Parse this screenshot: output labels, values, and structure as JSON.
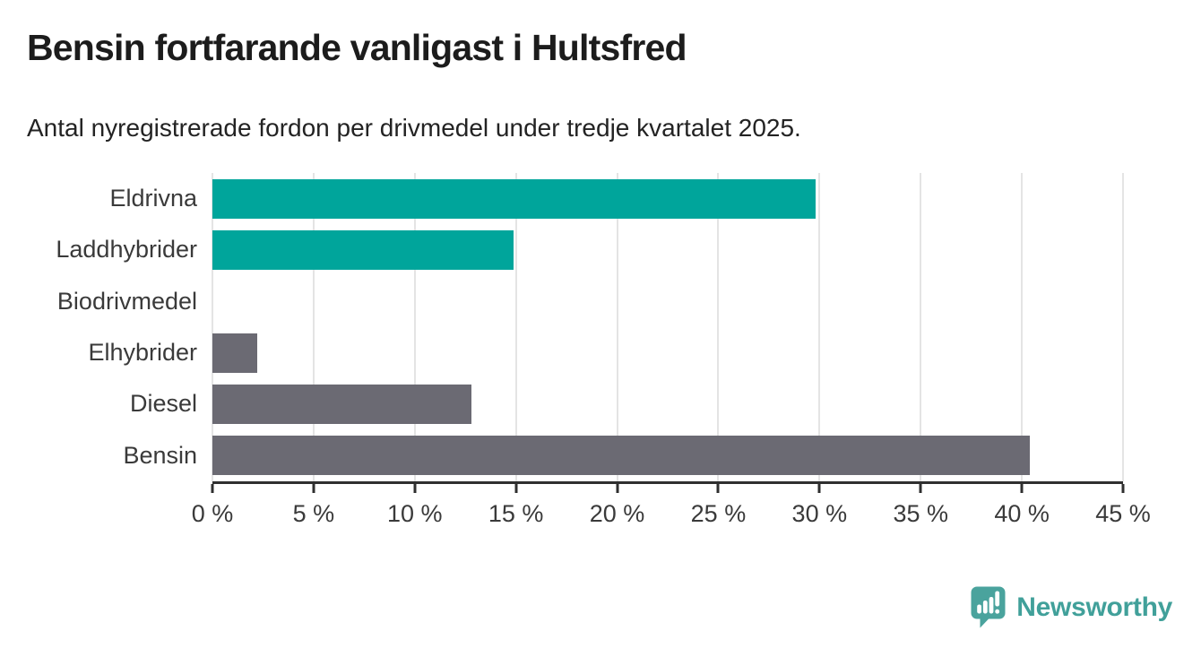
{
  "header": {
    "title": "Bensin fortfarande vanligast i Hultsfred",
    "subtitle": "Antal nyregistrerade fordon per drivmedel under tredje kvartalet 2025."
  },
  "chart_data": {
    "type": "bar",
    "orientation": "horizontal",
    "title": "Bensin fortfarande vanligast i Hultsfred",
    "subtitle": "Antal nyregistrerade fordon per drivmedel under tredje kvartalet 2025.",
    "categories": [
      "Eldrivna",
      "Laddhybrider",
      "Biodrivmedel",
      "Elhybrider",
      "Diesel",
      "Bensin"
    ],
    "values": [
      29.8,
      14.9,
      0,
      2.2,
      12.8,
      40.4
    ],
    "unit": "%",
    "bar_colors": [
      "#00a59b",
      "#00a59b",
      "#6b6a73",
      "#6b6a73",
      "#6b6a73",
      "#6b6a73"
    ],
    "xlim": [
      0,
      45
    ],
    "x_tick_values": [
      0,
      5,
      10,
      15,
      20,
      25,
      30,
      35,
      40,
      45
    ],
    "x_tick_labels": [
      "0 %",
      "5 %",
      "10 %",
      "15 %",
      "20 %",
      "25 %",
      "30 %",
      "35 %",
      "40 %",
      "45 %"
    ],
    "grid": "vertical-gridlines-at-ticks",
    "legend": "none",
    "xlabel": "",
    "ylabel": ""
  },
  "colors": {
    "teal": "#00a59b",
    "gray": "#6b6a73",
    "gridline": "#e4e4e4",
    "axis": "#2f2f2f",
    "text": "#3a3a3a",
    "brand": "#41a09a"
  },
  "branding": {
    "logo_text": "Newsworthy",
    "logo_icon": "speech-bubble-with-bar-chart-and-exclamation"
  }
}
